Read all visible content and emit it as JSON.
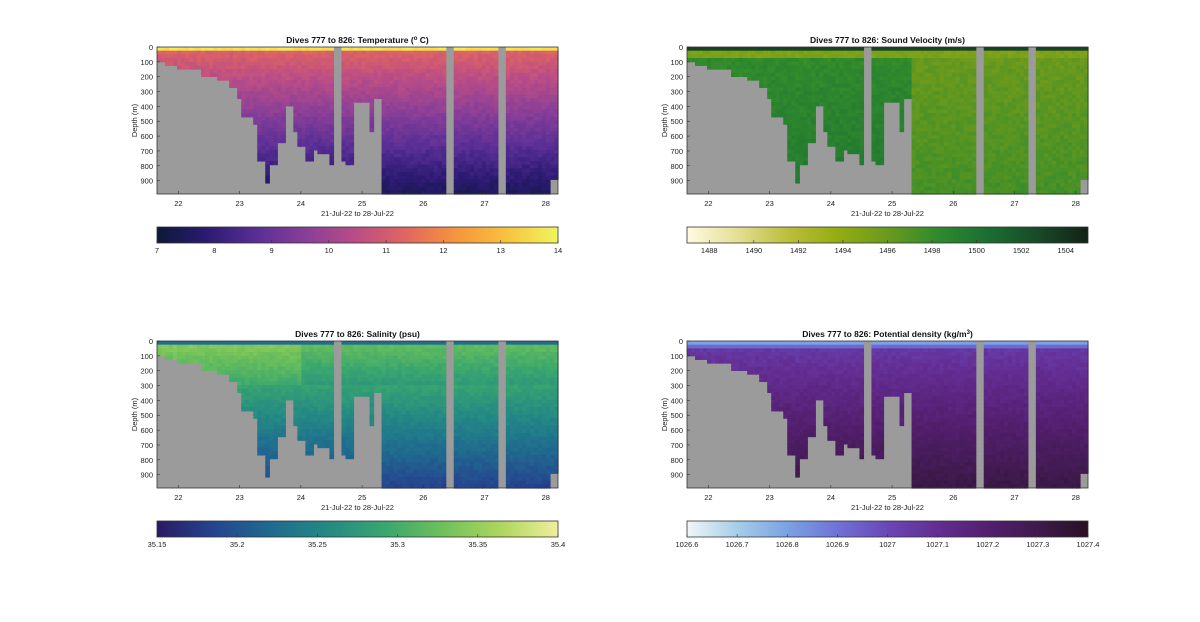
{
  "figure": {
    "background": "#ffffff"
  },
  "chart_data": [
    {
      "type": "heatmap",
      "title": "Dives 777 to 826: Temperature (",
      "title_sup": "o",
      "title_end": " C)",
      "xlabel": "21-Jul-22 to 28-Jul-22",
      "ylabel": "Depth (m)",
      "x_ticks": [
        "22",
        "23",
        "24",
        "25",
        "26",
        "27",
        "28"
      ],
      "y_ticks": [
        "0",
        "100",
        "200",
        "300",
        "400",
        "500",
        "600",
        "700",
        "800",
        "900"
      ],
      "xlim": [
        21.65,
        28.2
      ],
      "ylim": [
        0,
        990
      ],
      "colorbar_ticks": [
        "7",
        "8",
        "9",
        "10",
        "11",
        "12",
        "13",
        "14"
      ],
      "colorbar_range": [
        7,
        14
      ],
      "colormap": [
        "#0b1a36",
        "#2c1a72",
        "#5a2f96",
        "#8a3f98",
        "#bb4d86",
        "#e2675e",
        "#f6963d",
        "#f8c33e",
        "#f0f55e"
      ],
      "no_data_color": "#9b9b9b"
    },
    {
      "type": "heatmap",
      "title": "Dives 777 to 826: Sound Velocity (m/s)",
      "xlabel": "21-Jul-22 to 28-Jul-22",
      "ylabel": "Depth (m)",
      "x_ticks": [
        "22",
        "23",
        "24",
        "25",
        "26",
        "27",
        "28"
      ],
      "y_ticks": [
        "0",
        "100",
        "200",
        "300",
        "400",
        "500",
        "600",
        "700",
        "800",
        "900"
      ],
      "xlim": [
        21.65,
        28.2
      ],
      "ylim": [
        0,
        990
      ],
      "colorbar_ticks": [
        "1488",
        "1490",
        "1492",
        "1494",
        "1496",
        "1498",
        "1500",
        "1502",
        "1504"
      ],
      "colorbar_range": [
        1487,
        1505
      ],
      "colormap": [
        "#fffbe0",
        "#e4df94",
        "#bcbe3c",
        "#94ac12",
        "#6b9a1d",
        "#2f8a2d",
        "#1b6e33",
        "#184a27",
        "#122217"
      ],
      "no_data_color": "#9b9b9b"
    },
    {
      "type": "heatmap",
      "title": "Dives 777 to 826: Salinity (psu)",
      "xlabel": "21-Jul-22 to 28-Jul-22",
      "ylabel": "Depth (m)",
      "x_ticks": [
        "22",
        "23",
        "24",
        "25",
        "26",
        "27",
        "28"
      ],
      "y_ticks": [
        "0",
        "100",
        "200",
        "300",
        "400",
        "500",
        "600",
        "700",
        "800",
        "900"
      ],
      "xlim": [
        21.65,
        28.2
      ],
      "ylim": [
        0,
        990
      ],
      "colorbar_ticks": [
        "35.15",
        "35.2",
        "35.25",
        "35.3",
        "35.35",
        "35.4"
      ],
      "colorbar_range": [
        35.15,
        35.4
      ],
      "colormap": [
        "#2a1a64",
        "#26458f",
        "#1f6b8f",
        "#248a84",
        "#3aa76e",
        "#6fc15a",
        "#aed65f",
        "#f0ee9a"
      ],
      "no_data_color": "#9b9b9b"
    },
    {
      "type": "heatmap",
      "title": "Dives 777 to 826: Potential density (kg/m",
      "title_sup": "3",
      "title_end": ")",
      "xlabel": "21-Jul-22 to 28-Jul-22",
      "ylabel": "Depth (m)",
      "x_ticks": [
        "22",
        "23",
        "24",
        "25",
        "26",
        "27",
        "28"
      ],
      "y_ticks": [
        "0",
        "100",
        "200",
        "300",
        "400",
        "500",
        "600",
        "700",
        "800",
        "900"
      ],
      "xlim": [
        21.65,
        28.2
      ],
      "ylim": [
        0,
        990
      ],
      "colorbar_ticks": [
        "1026.6",
        "1026.7",
        "1026.8",
        "1026.9",
        "1027",
        "1027.1",
        "1027.2",
        "1027.3",
        "1027.4"
      ],
      "colorbar_range": [
        1026.6,
        1027.4
      ],
      "colormap": [
        "#f0f6f7",
        "#a6cde8",
        "#7aa2e4",
        "#6f72d8",
        "#6a47b6",
        "#632d92",
        "#531f6e",
        "#3f1a4d",
        "#2a0f24"
      ],
      "no_data_color": "#9b9b9b"
    }
  ]
}
